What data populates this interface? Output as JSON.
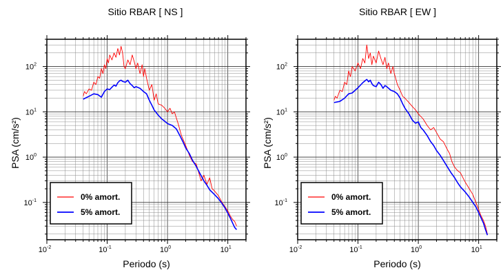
{
  "chart_data": [
    {
      "type": "line",
      "title": "Sitio RBAR [ NS ]",
      "xlabel": "Periodo (s)",
      "ylabel": "PSA (cm/s²)",
      "xscale": "log",
      "yscale": "log",
      "xlim": [
        0.01,
        20
      ],
      "ylim": [
        0.015,
        400
      ],
      "x_ticks": [
        {
          "value": 0.01,
          "base": "10",
          "exp": "-2"
        },
        {
          "value": 0.1,
          "base": "10",
          "exp": "-1"
        },
        {
          "value": 1,
          "base": "10",
          "exp": "0"
        },
        {
          "value": 10,
          "base": "10",
          "exp": "1"
        }
      ],
      "y_ticks": [
        {
          "value": 0.1,
          "base": "10",
          "exp": "-1"
        },
        {
          "value": 1,
          "base": "10",
          "exp": "0"
        },
        {
          "value": 10,
          "base": "10",
          "exp": "1"
        },
        {
          "value": 100,
          "base": "10",
          "exp": "2"
        }
      ],
      "grid": true,
      "legend_position": "bottom-left",
      "series": [
        {
          "name": "0% amort.",
          "color": "#ff0000",
          "points": [
            [
              0.04,
              22
            ],
            [
              0.042,
              28
            ],
            [
              0.045,
              25
            ],
            [
              0.05,
              32
            ],
            [
              0.055,
              30
            ],
            [
              0.06,
              45
            ],
            [
              0.065,
              40
            ],
            [
              0.07,
              60
            ],
            [
              0.075,
              55
            ],
            [
              0.08,
              90
            ],
            [
              0.085,
              70
            ],
            [
              0.09,
              110
            ],
            [
              0.095,
              90
            ],
            [
              0.1,
              150
            ],
            [
              0.105,
              120
            ],
            [
              0.11,
              180
            ],
            [
              0.12,
              140
            ],
            [
              0.13,
              200
            ],
            [
              0.14,
              160
            ],
            [
              0.15,
              250
            ],
            [
              0.16,
              180
            ],
            [
              0.17,
              280
            ],
            [
              0.18,
              200
            ],
            [
              0.19,
              100
            ],
            [
              0.2,
              90
            ],
            [
              0.22,
              140
            ],
            [
              0.24,
              110
            ],
            [
              0.26,
              180
            ],
            [
              0.28,
              130
            ],
            [
              0.3,
              90
            ],
            [
              0.32,
              120
            ],
            [
              0.35,
              70
            ],
            [
              0.38,
              110
            ],
            [
              0.4,
              60
            ],
            [
              0.42,
              90
            ],
            [
              0.45,
              55
            ],
            [
              0.5,
              30
            ],
            [
              0.55,
              40
            ],
            [
              0.6,
              18
            ],
            [
              0.65,
              25
            ],
            [
              0.7,
              15
            ],
            [
              0.8,
              14
            ],
            [
              0.9,
              12
            ],
            [
              1.0,
              10
            ],
            [
              1.1,
              12
            ],
            [
              1.2,
              9
            ],
            [
              1.3,
              10
            ],
            [
              1.5,
              5.5
            ],
            [
              1.7,
              3
            ],
            [
              2,
              1.8
            ],
            [
              2.3,
              1.1
            ],
            [
              2.6,
              0.8
            ],
            [
              3,
              0.7
            ],
            [
              3.3,
              0.45
            ],
            [
              3.6,
              0.3
            ],
            [
              4,
              0.4
            ],
            [
              4.5,
              0.25
            ],
            [
              5,
              0.35
            ],
            [
              5.5,
              0.2
            ],
            [
              6,
              0.18
            ],
            [
              7,
              0.14
            ],
            [
              8,
              0.1
            ],
            [
              9,
              0.08
            ],
            [
              10,
              0.065
            ],
            [
              11,
              0.05
            ],
            [
              12,
              0.042
            ],
            [
              13,
              0.038
            ],
            [
              14,
              0.03
            ]
          ]
        },
        {
          "name": "5% amort.",
          "color": "#0000ff",
          "points": [
            [
              0.04,
              19
            ],
            [
              0.05,
              22
            ],
            [
              0.06,
              25
            ],
            [
              0.07,
              24
            ],
            [
              0.08,
              21
            ],
            [
              0.09,
              28
            ],
            [
              0.1,
              32
            ],
            [
              0.11,
              31
            ],
            [
              0.12,
              35
            ],
            [
              0.13,
              39
            ],
            [
              0.14,
              37
            ],
            [
              0.15,
              44
            ],
            [
              0.16,
              48
            ],
            [
              0.17,
              50
            ],
            [
              0.18,
              47
            ],
            [
              0.2,
              45
            ],
            [
              0.22,
              50
            ],
            [
              0.24,
              42
            ],
            [
              0.26,
              38
            ],
            [
              0.28,
              34
            ],
            [
              0.3,
              36
            ],
            [
              0.35,
              33
            ],
            [
              0.4,
              28
            ],
            [
              0.45,
              25
            ],
            [
              0.5,
              18
            ],
            [
              0.55,
              14
            ],
            [
              0.6,
              11
            ],
            [
              0.7,
              8.5
            ],
            [
              0.8,
              7
            ],
            [
              0.9,
              6.2
            ],
            [
              1.0,
              5.5
            ],
            [
              1.2,
              5
            ],
            [
              1.4,
              4.2
            ],
            [
              1.6,
              3
            ],
            [
              1.8,
              2.2
            ],
            [
              2,
              1.6
            ],
            [
              2.3,
              1.2
            ],
            [
              2.6,
              0.85
            ],
            [
              3,
              0.62
            ],
            [
              3.5,
              0.42
            ],
            [
              4,
              0.3
            ],
            [
              4.5,
              0.24
            ],
            [
              5,
              0.19
            ],
            [
              6,
              0.15
            ],
            [
              7,
              0.12
            ],
            [
              8,
              0.095
            ],
            [
              9,
              0.075
            ],
            [
              10,
              0.058
            ],
            [
              11,
              0.045
            ],
            [
              12,
              0.035
            ],
            [
              13,
              0.028
            ],
            [
              14,
              0.025
            ]
          ]
        }
      ]
    },
    {
      "type": "line",
      "title": "Sitio RBAR [ EW ]",
      "xlabel": "Periodo (s)",
      "ylabel": "PSA (cm/s²)",
      "xscale": "log",
      "yscale": "log",
      "xlim": [
        0.01,
        20
      ],
      "ylim": [
        0.015,
        400
      ],
      "x_ticks": [
        {
          "value": 0.01,
          "base": "10",
          "exp": "-2"
        },
        {
          "value": 0.1,
          "base": "10",
          "exp": "-1"
        },
        {
          "value": 1,
          "base": "10",
          "exp": "0"
        },
        {
          "value": 10,
          "base": "10",
          "exp": "1"
        }
      ],
      "y_ticks": [
        {
          "value": 0.1,
          "base": "10",
          "exp": "-1"
        },
        {
          "value": 1,
          "base": "10",
          "exp": "0"
        },
        {
          "value": 10,
          "base": "10",
          "exp": "1"
        },
        {
          "value": 100,
          "base": "10",
          "exp": "2"
        }
      ],
      "grid": true,
      "legend_position": "bottom-left",
      "series": [
        {
          "name": "0% amort.",
          "color": "#ff0000",
          "points": [
            [
              0.04,
              18
            ],
            [
              0.042,
              22
            ],
            [
              0.045,
              20
            ],
            [
              0.05,
              30
            ],
            [
              0.055,
              28
            ],
            [
              0.06,
              45
            ],
            [
              0.065,
              40
            ],
            [
              0.07,
              80
            ],
            [
              0.075,
              60
            ],
            [
              0.08,
              100
            ],
            [
              0.09,
              80
            ],
            [
              0.1,
              120
            ],
            [
              0.11,
              90
            ],
            [
              0.12,
              150
            ],
            [
              0.13,
              120
            ],
            [
              0.14,
              300
            ],
            [
              0.15,
              150
            ],
            [
              0.16,
              200
            ],
            [
              0.17,
              110
            ],
            [
              0.18,
              170
            ],
            [
              0.2,
              120
            ],
            [
              0.22,
              220
            ],
            [
              0.24,
              150
            ],
            [
              0.26,
              110
            ],
            [
              0.28,
              160
            ],
            [
              0.3,
              90
            ],
            [
              0.32,
              120
            ],
            [
              0.35,
              70
            ],
            [
              0.38,
              100
            ],
            [
              0.4,
              70
            ],
            [
              0.45,
              40
            ],
            [
              0.5,
              30
            ],
            [
              0.55,
              22
            ],
            [
              0.6,
              20
            ],
            [
              0.7,
              16
            ],
            [
              0.8,
              13
            ],
            [
              0.9,
              11
            ],
            [
              1.0,
              9
            ],
            [
              1.2,
              7
            ],
            [
              1.4,
              5
            ],
            [
              1.6,
              4
            ],
            [
              1.8,
              4.5
            ],
            [
              2,
              3.5
            ],
            [
              2.3,
              2.5
            ],
            [
              2.6,
              2.2
            ],
            [
              3,
              1.5
            ],
            [
              3.3,
              1.2
            ],
            [
              3.6,
              0.8
            ],
            [
              4,
              0.6
            ],
            [
              4.5,
              0.5
            ],
            [
              5,
              0.45
            ],
            [
              5.5,
              0.35
            ],
            [
              6,
              0.28
            ],
            [
              7,
              0.2
            ],
            [
              8,
              0.15
            ],
            [
              9,
              0.1
            ],
            [
              10,
              0.07
            ],
            [
              11,
              0.05
            ],
            [
              12,
              0.04
            ],
            [
              13,
              0.03
            ],
            [
              14,
              0.02
            ]
          ]
        },
        {
          "name": "5% amort.",
          "color": "#0000ff",
          "points": [
            [
              0.04,
              16
            ],
            [
              0.05,
              17
            ],
            [
              0.06,
              20
            ],
            [
              0.07,
              25
            ],
            [
              0.08,
              26
            ],
            [
              0.09,
              30
            ],
            [
              0.1,
              34
            ],
            [
              0.11,
              39
            ],
            [
              0.12,
              44
            ],
            [
              0.13,
              48
            ],
            [
              0.14,
              52
            ],
            [
              0.15,
              46
            ],
            [
              0.16,
              50
            ],
            [
              0.17,
              42
            ],
            [
              0.18,
              38
            ],
            [
              0.2,
              36
            ],
            [
              0.22,
              45
            ],
            [
              0.24,
              40
            ],
            [
              0.26,
              33
            ],
            [
              0.28,
              38
            ],
            [
              0.3,
              36
            ],
            [
              0.35,
              30
            ],
            [
              0.4,
              28
            ],
            [
              0.45,
              25
            ],
            [
              0.5,
              20
            ],
            [
              0.55,
              15
            ],
            [
              0.6,
              12
            ],
            [
              0.7,
              9
            ],
            [
              0.8,
              6.5
            ],
            [
              0.9,
              5.6
            ],
            [
              1.0,
              6
            ],
            [
              1.1,
              4.5
            ],
            [
              1.2,
              4
            ],
            [
              1.4,
              3
            ],
            [
              1.6,
              2.2
            ],
            [
              1.8,
              1.8
            ],
            [
              2,
              1.4
            ],
            [
              2.3,
              1.1
            ],
            [
              2.6,
              0.85
            ],
            [
              3,
              0.62
            ],
            [
              3.5,
              0.45
            ],
            [
              4,
              0.35
            ],
            [
              4.5,
              0.27
            ],
            [
              5,
              0.22
            ],
            [
              6,
              0.17
            ],
            [
              7,
              0.13
            ],
            [
              8,
              0.1
            ],
            [
              9,
              0.08
            ],
            [
              10,
              0.06
            ],
            [
              11,
              0.045
            ],
            [
              12,
              0.035
            ],
            [
              13,
              0.025
            ],
            [
              14,
              0.019
            ]
          ]
        }
      ]
    }
  ]
}
